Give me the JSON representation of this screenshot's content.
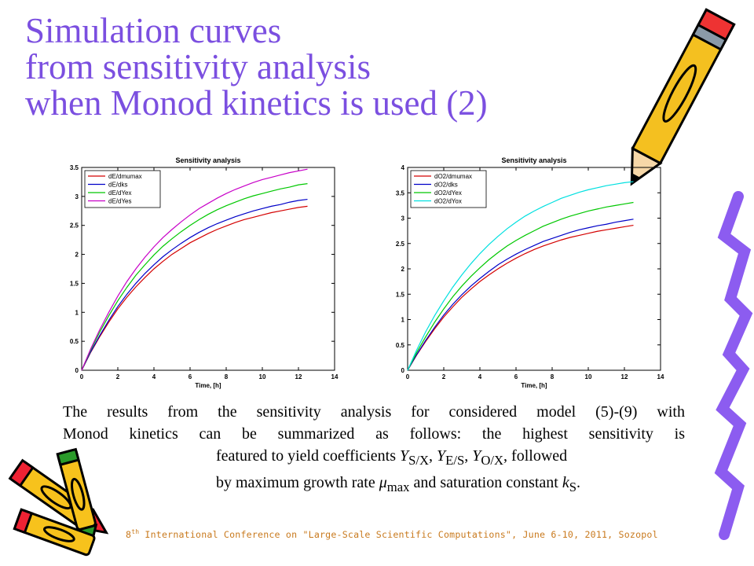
{
  "slide": {
    "title_lines": [
      "Simulation curves",
      "from sensitivity analysis",
      "when Monod kinetics is used (2)"
    ],
    "colors": {
      "title": "#7b4fe0",
      "footer": "#c97a1e"
    }
  },
  "text": {
    "line1": "The results from the sensitivity analysis for considered model (5)-(9) with",
    "line2": "Monod kinetics can be summarized as follows: the highest sensitivity is",
    "line3_pre": "featured to yield coefficients ",
    "y1": "Y",
    "y1_sub": "S/X",
    "sep1": ", ",
    "y2": "Y",
    "y2_sub": "E/S",
    "sep2": ", ",
    "y3": "Y",
    "y3_sub": "O/X",
    "line3_post": ", followed",
    "line4_pre": "by maximum growth rate ",
    "mu": "μ",
    "mu_sub": "max",
    "line4_mid": " and saturation constant ",
    "k": "k",
    "k_sub": "S",
    "line4_post": "."
  },
  "footer": {
    "num": "8",
    "sup": "th",
    "text": " International Conference on \"Large-Scale Scientific Computations\", June 6-10, 2011, Sozopol"
  },
  "decorations": [
    "pencil-icon",
    "crayon-icon",
    "crayon-icon",
    "crayon-icon"
  ],
  "chart_data": [
    {
      "type": "line",
      "title": "Sensitivity analysis",
      "xlabel": "Time, [h]",
      "ylabel": "",
      "xlim": [
        0,
        14
      ],
      "ylim": [
        0,
        3.5
      ],
      "xticks": [
        0,
        2,
        4,
        6,
        8,
        10,
        12,
        14
      ],
      "yticks": [
        0,
        0.5,
        1,
        1.5,
        2,
        2.5,
        3,
        3.5
      ],
      "legend_position": "top-left",
      "x": [
        0,
        0.5,
        1,
        1.5,
        2,
        2.5,
        3,
        3.5,
        4,
        4.5,
        5,
        5.5,
        6,
        6.5,
        7,
        7.5,
        8,
        8.5,
        9,
        9.5,
        10,
        10.5,
        11,
        11.5,
        12,
        12.5
      ],
      "series": [
        {
          "name": "dE/dmumax",
          "color": "#d40000",
          "values": [
            0,
            0.31,
            0.58,
            0.83,
            1.06,
            1.26,
            1.44,
            1.6,
            1.75,
            1.88,
            2.0,
            2.1,
            2.2,
            2.28,
            2.36,
            2.43,
            2.49,
            2.55,
            2.6,
            2.64,
            2.68,
            2.72,
            2.75,
            2.78,
            2.81,
            2.83
          ]
        },
        {
          "name": "dE/dks",
          "color": "#0000c8",
          "values": [
            0,
            0.32,
            0.6,
            0.86,
            1.1,
            1.31,
            1.5,
            1.67,
            1.82,
            1.96,
            2.08,
            2.19,
            2.29,
            2.38,
            2.46,
            2.53,
            2.59,
            2.65,
            2.7,
            2.75,
            2.79,
            2.83,
            2.86,
            2.9,
            2.93,
            2.95
          ]
        },
        {
          "name": "dE/dYex",
          "color": "#00c800",
          "values": [
            0,
            0.35,
            0.66,
            0.94,
            1.2,
            1.43,
            1.64,
            1.82,
            1.99,
            2.14,
            2.27,
            2.39,
            2.5,
            2.6,
            2.69,
            2.77,
            2.84,
            2.9,
            2.96,
            3.01,
            3.05,
            3.09,
            3.13,
            3.16,
            3.2,
            3.22
          ]
        },
        {
          "name": "dE/dYes",
          "color": "#c800c8",
          "values": [
            0,
            0.37,
            0.7,
            1.0,
            1.28,
            1.53,
            1.75,
            1.95,
            2.13,
            2.29,
            2.43,
            2.56,
            2.68,
            2.79,
            2.88,
            2.97,
            3.05,
            3.12,
            3.18,
            3.24,
            3.29,
            3.33,
            3.37,
            3.41,
            3.44,
            3.47
          ]
        }
      ]
    },
    {
      "type": "line",
      "title": "Sensitivity analysis",
      "xlabel": "Time, [h]",
      "ylabel": "",
      "xlim": [
        0,
        14
      ],
      "ylim": [
        0,
        4
      ],
      "xticks": [
        0,
        2,
        4,
        6,
        8,
        10,
        12,
        14
      ],
      "yticks": [
        0,
        0.5,
        1,
        1.5,
        2,
        2.5,
        3,
        3.5,
        4
      ],
      "legend_position": "top-left",
      "x": [
        0,
        0.5,
        1,
        1.5,
        2,
        2.5,
        3,
        3.5,
        4,
        4.5,
        5,
        5.5,
        6,
        6.5,
        7,
        7.5,
        8,
        8.5,
        9,
        9.5,
        10,
        10.5,
        11,
        11.5,
        12,
        12.5
      ],
      "series": [
        {
          "name": "dO2/dmumax",
          "color": "#d40000",
          "values": [
            0,
            0.3,
            0.57,
            0.82,
            1.05,
            1.25,
            1.44,
            1.6,
            1.75,
            1.88,
            2.0,
            2.11,
            2.21,
            2.3,
            2.38,
            2.45,
            2.51,
            2.57,
            2.62,
            2.66,
            2.7,
            2.74,
            2.77,
            2.8,
            2.83,
            2.86
          ]
        },
        {
          "name": "dO2/dks",
          "color": "#0000c8",
          "values": [
            0,
            0.31,
            0.59,
            0.85,
            1.09,
            1.3,
            1.49,
            1.66,
            1.81,
            1.95,
            2.08,
            2.19,
            2.29,
            2.38,
            2.46,
            2.54,
            2.6,
            2.66,
            2.72,
            2.77,
            2.81,
            2.85,
            2.88,
            2.92,
            2.95,
            2.98
          ]
        },
        {
          "name": "dO2/dYex",
          "color": "#00c800",
          "values": [
            0,
            0.35,
            0.66,
            0.95,
            1.21,
            1.45,
            1.66,
            1.85,
            2.02,
            2.18,
            2.32,
            2.45,
            2.56,
            2.66,
            2.75,
            2.84,
            2.91,
            2.98,
            3.04,
            3.09,
            3.14,
            3.18,
            3.22,
            3.25,
            3.28,
            3.31
          ]
        },
        {
          "name": "dO2/dYox",
          "color": "#00e0e0",
          "values": [
            0,
            0.4,
            0.76,
            1.08,
            1.37,
            1.64,
            1.88,
            2.1,
            2.3,
            2.48,
            2.64,
            2.79,
            2.92,
            3.04,
            3.14,
            3.23,
            3.31,
            3.39,
            3.45,
            3.51,
            3.56,
            3.6,
            3.64,
            3.67,
            3.7,
            3.72
          ]
        }
      ]
    }
  ]
}
